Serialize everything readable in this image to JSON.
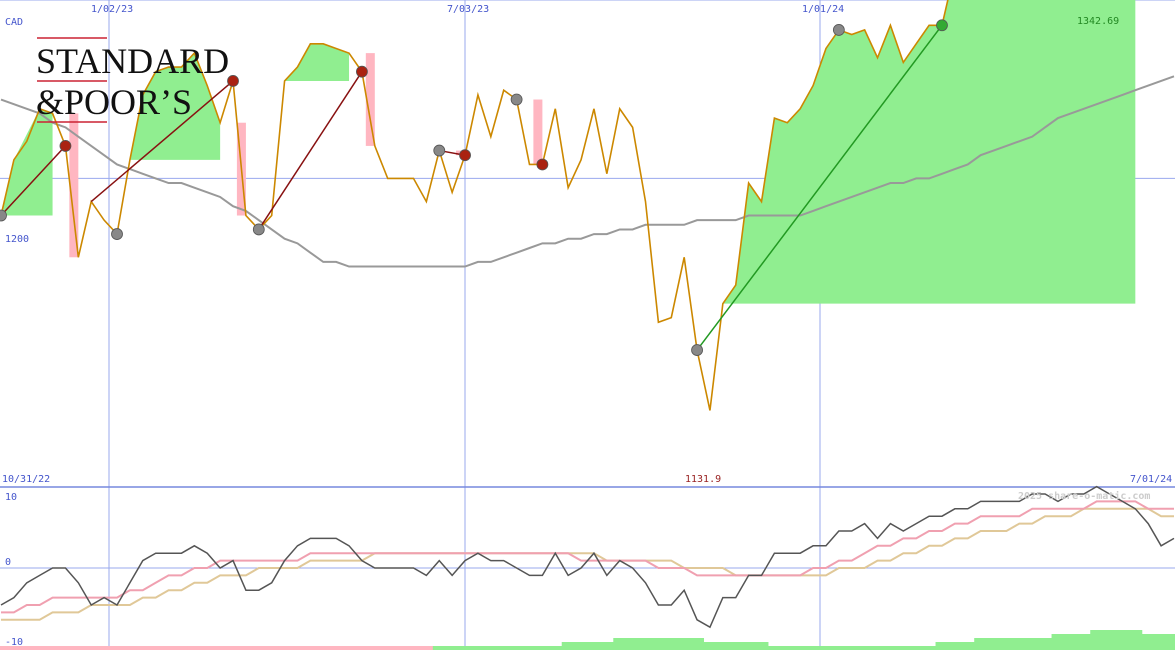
{
  "chart_data": [
    {
      "type": "line",
      "panel": "price",
      "currency_label": "CAD",
      "x_tick_labels": [
        "1/02/23",
        "7/03/23",
        "1/01/24"
      ],
      "start_date": "10/31/22",
      "end_date": "7/01/24",
      "y_label_level": "1200",
      "high_label": "1342.69",
      "low_label": "1131.9",
      "ylim": [
        1131.9,
        1342.69
      ],
      "series": [
        {
          "role": "price",
          "color": "#cc8800",
          "values": [
            1192,
            1204,
            1208,
            1215,
            1214,
            1207,
            1183,
            1195,
            1191,
            1188,
            1204,
            1218,
            1223,
            1224,
            1224,
            1227,
            1220,
            1212,
            1221,
            1192,
            1189,
            1192,
            1221,
            1224,
            1229,
            1229,
            1228,
            1227,
            1223,
            1207,
            1200,
            1200,
            1200,
            1195,
            1206,
            1197,
            1205,
            1218,
            1209,
            1219,
            1217,
            1203,
            1203,
            1215,
            1198,
            1204,
            1215,
            1201,
            1215,
            1211,
            1195,
            1169,
            1170,
            1183,
            1163,
            1150,
            1173,
            1177,
            1199,
            1195,
            1213,
            1212,
            1215,
            1220,
            1228,
            1232,
            1231,
            1232,
            1226,
            1233,
            1225,
            1229,
            1233,
            1233,
            1245,
            1247,
            1250,
            1258,
            1261,
            1264,
            1271,
            1280,
            1283,
            1280,
            1291,
            1292,
            1293,
            1288,
            1289,
            1281,
            1264,
            1279
          ]
        },
        {
          "role": "moving-average",
          "color": "#999999",
          "values": [
            1217,
            1216,
            1215,
            1214,
            1212,
            1211,
            1209,
            1207,
            1205,
            1203,
            1202,
            1201,
            1200,
            1199,
            1199,
            1198,
            1197,
            1196,
            1194,
            1193,
            1191,
            1189,
            1187,
            1186,
            1184,
            1182,
            1182,
            1181,
            1181,
            1181,
            1181,
            1181,
            1181,
            1181,
            1181,
            1181,
            1181,
            1182,
            1182,
            1183,
            1184,
            1185,
            1186,
            1186,
            1187,
            1187,
            1188,
            1188,
            1189,
            1189,
            1190,
            1190,
            1190,
            1190,
            1191,
            1191,
            1191,
            1191,
            1192,
            1192,
            1192,
            1192,
            1192,
            1193,
            1194,
            1195,
            1196,
            1197,
            1198,
            1199,
            1199,
            1200,
            1200,
            1201,
            1202,
            1203,
            1205,
            1206,
            1207,
            1208,
            1209,
            1211,
            1213,
            1214,
            1215,
            1216,
            1217,
            1218,
            1219,
            1220,
            1221,
            1222
          ]
        }
      ],
      "up_trends": [
        [
          1,
          3,
          4
        ],
        [
          11,
          12,
          13,
          14,
          15,
          16,
          17
        ],
        [
          23,
          24,
          25,
          26,
          27
        ],
        [
          57,
          58,
          59,
          60,
          61,
          62,
          63,
          64,
          65,
          66,
          67,
          68,
          69,
          70,
          71,
          72,
          73,
          74,
          75,
          76,
          77,
          78,
          79,
          80,
          81,
          82,
          83,
          84,
          85,
          86,
          87,
          88
        ]
      ],
      "down_trends": [
        [
          5,
          6
        ],
        [
          18,
          19
        ],
        [
          28,
          29
        ],
        [
          35,
          36
        ],
        [
          41,
          42
        ]
      ],
      "markers": {
        "start_idx": [
          0,
          9,
          20,
          34,
          40,
          54,
          65
        ],
        "sell_idx": [
          5,
          18,
          28,
          36,
          42
        ],
        "buy_idx": [
          73,
          85
        ]
      },
      "trend_lines": [
        {
          "from": 0,
          "to": 5,
          "kind": "down"
        },
        {
          "from": 7,
          "to": 18,
          "kind": "down"
        },
        {
          "from": 20,
          "to": 28,
          "kind": "down"
        },
        {
          "from": 34,
          "to": 36,
          "kind": "down"
        },
        {
          "from": 54,
          "to": 73,
          "kind": "up"
        },
        {
          "from": 75,
          "to": 85,
          "kind": "up"
        }
      ],
      "grid": true
    },
    {
      "type": "line",
      "panel": "oscillator",
      "y_tick_labels": [
        "10",
        "0",
        "-10"
      ],
      "ylim": [
        -10,
        10
      ],
      "watermark": "2025 share-o-matic.com",
      "series": [
        {
          "role": "oscillator",
          "color": "#555555",
          "values": [
            -5,
            -4,
            -2,
            -1,
            0,
            0,
            -2,
            -5,
            -4,
            -5,
            -2,
            1,
            2,
            2,
            2,
            3,
            2,
            0,
            1,
            -3,
            -3,
            -2,
            1,
            3,
            4,
            4,
            4,
            3,
            1,
            0,
            0,
            0,
            0,
            -1,
            1,
            -1,
            1,
            2,
            1,
            1,
            0,
            -1,
            -1,
            2,
            -1,
            0,
            2,
            -1,
            1,
            0,
            -2,
            -5,
            -5,
            -3,
            -7,
            -8,
            -4,
            -4,
            -1,
            -1,
            2,
            2,
            2,
            3,
            3,
            5,
            5,
            6,
            4,
            6,
            5,
            6,
            7,
            7,
            8,
            8,
            9,
            9,
            9,
            9,
            10,
            10,
            9,
            10,
            10,
            11,
            10,
            9,
            8,
            6,
            3,
            4
          ]
        },
        {
          "role": "signal-fast",
          "color": "#f0a0b0",
          "values": [
            -6,
            -6,
            -5,
            -5,
            -4,
            -4,
            -4,
            -4,
            -4,
            -4,
            -3,
            -3,
            -2,
            -1,
            -1,
            0,
            0,
            1,
            1,
            1,
            1,
            1,
            1,
            1,
            2,
            2,
            2,
            2,
            2,
            2,
            2,
            2,
            2,
            2,
            2,
            2,
            2,
            2,
            2,
            2,
            2,
            2,
            2,
            2,
            2,
            1,
            1,
            1,
            1,
            1,
            1,
            0,
            0,
            0,
            -1,
            -1,
            -1,
            -1,
            -1,
            -1,
            -1,
            -1,
            -1,
            0,
            0,
            1,
            1,
            2,
            3,
            3,
            4,
            4,
            5,
            5,
            6,
            6,
            7,
            7,
            7,
            7,
            8,
            8,
            8,
            8,
            8,
            9,
            9,
            9,
            9,
            8,
            8,
            8
          ]
        },
        {
          "role": "signal-slow",
          "color": "#e0c898",
          "values": [
            -7,
            -7,
            -7,
            -7,
            -6,
            -6,
            -6,
            -5,
            -5,
            -5,
            -5,
            -4,
            -4,
            -3,
            -3,
            -2,
            -2,
            -1,
            -1,
            -1,
            0,
            0,
            0,
            0,
            1,
            1,
            1,
            1,
            1,
            2,
            2,
            2,
            2,
            2,
            2,
            2,
            2,
            2,
            2,
            2,
            2,
            2,
            2,
            2,
            2,
            2,
            2,
            1,
            1,
            1,
            1,
            1,
            1,
            0,
            0,
            0,
            0,
            -1,
            -1,
            -1,
            -1,
            -1,
            -1,
            -1,
            -1,
            0,
            0,
            0,
            1,
            1,
            2,
            2,
            3,
            3,
            4,
            4,
            5,
            5,
            5,
            6,
            6,
            7,
            7,
            7,
            8,
            8,
            8,
            8,
            8,
            8,
            7,
            7
          ]
        }
      ],
      "volume_bars": [
        -1,
        -1,
        -1,
        -1,
        -1,
        -1,
        -1,
        -1,
        -1,
        -1,
        -1,
        -1,
        -1,
        -1,
        -1,
        -1,
        -1,
        -1,
        -1,
        -1,
        -1,
        -1,
        -1,
        -1,
        -1,
        -1,
        -1,
        -1,
        -1,
        -1,
        -1,
        -1,
        -1,
        -1,
        1,
        1,
        1,
        1,
        1,
        1,
        1,
        1,
        1,
        1,
        2,
        2,
        2,
        2,
        3,
        3,
        3,
        3,
        3,
        3,
        3,
        2,
        2,
        2,
        2,
        2,
        1,
        1,
        1,
        1,
        1,
        1,
        1,
        1,
        1,
        1,
        1,
        1,
        1,
        2,
        2,
        2,
        3,
        3,
        3,
        3,
        3,
        3,
        4,
        4,
        4,
        5,
        5,
        5,
        5,
        4,
        4,
        4
      ],
      "up_color": "#90ee90",
      "down_color": "#ffb6c1",
      "grid": true
    }
  ],
  "logo": {
    "line1": "STANDARD",
    "line2": "&POOR’S",
    "rule_color": "#cc2233"
  }
}
